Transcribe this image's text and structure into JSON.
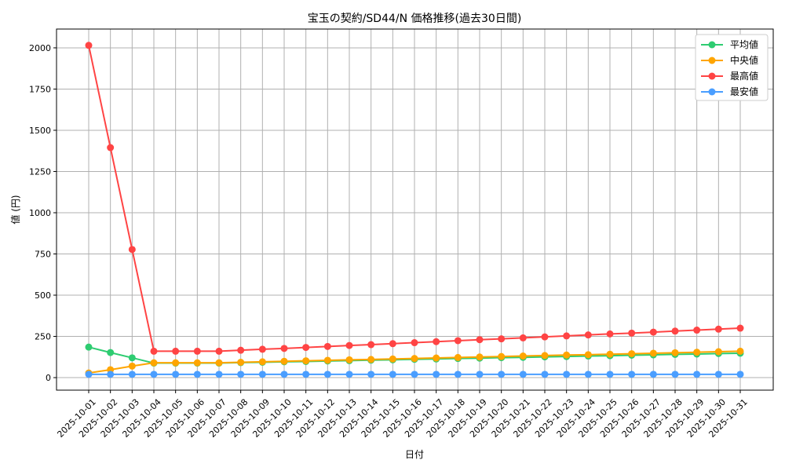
{
  "chart_data": {
    "type": "line",
    "title": "宝玉の契約/SD44/N 価格推移(過去30日間)",
    "xlabel": "日付",
    "ylabel": "値 (円)",
    "ylim": [
      -76,
      2114
    ],
    "yticks": [
      0,
      250,
      500,
      750,
      1000,
      1250,
      1500,
      1750,
      2000
    ],
    "grid": true,
    "legend": "top-right",
    "x": [
      "2025-10-01",
      "2025-10-02",
      "2025-10-03",
      "2025-10-04",
      "2025-10-05",
      "2025-10-06",
      "2025-10-07",
      "2025-10-08",
      "2025-10-09",
      "2025-10-10",
      "2025-10-11",
      "2025-10-12",
      "2025-10-13",
      "2025-10-14",
      "2025-10-15",
      "2025-10-16",
      "2025-10-17",
      "2025-10-18",
      "2025-10-19",
      "2025-10-20",
      "2025-10-21",
      "2025-10-22",
      "2025-10-23",
      "2025-10-24",
      "2025-10-25",
      "2025-10-26",
      "2025-10-27",
      "2025-10-28",
      "2025-10-29",
      "2025-10-30",
      "2025-10-31"
    ],
    "series": [
      {
        "name": "平均値",
        "color": "#2ecc71",
        "values": [
          185,
          152,
          120,
          88,
          88,
          88,
          88,
          91,
          93,
          96,
          98,
          101,
          103,
          106,
          108,
          111,
          113,
          116,
          118,
          121,
          123,
          126,
          128,
          131,
          133,
          136,
          138,
          141,
          143,
          146,
          148
        ]
      },
      {
        "name": "中央値",
        "color": "#ffa500",
        "values": [
          28,
          48,
          70,
          90,
          90,
          90,
          90,
          93,
          96,
          99,
          102,
          105,
          108,
          110,
          113,
          116,
          119,
          122,
          125,
          128,
          131,
          134,
          137,
          139,
          142,
          145,
          148,
          151,
          154,
          157,
          160
        ]
      },
      {
        "name": "最高値",
        "color": "#ff4444",
        "values": [
          2015,
          1395,
          777,
          160,
          160,
          160,
          160,
          166,
          172,
          177,
          183,
          189,
          195,
          200,
          206,
          212,
          218,
          224,
          230,
          235,
          241,
          247,
          253,
          259,
          265,
          270,
          276,
          282,
          288,
          294,
          300
        ]
      },
      {
        "name": "最安値",
        "color": "#4a9eff",
        "values": [
          20,
          20,
          20,
          20,
          20,
          20,
          20,
          20,
          20,
          20,
          20,
          20,
          20,
          20,
          20,
          20,
          20,
          20,
          20,
          20,
          20,
          20,
          20,
          20,
          20,
          20,
          20,
          20,
          20,
          20,
          20
        ]
      }
    ]
  }
}
